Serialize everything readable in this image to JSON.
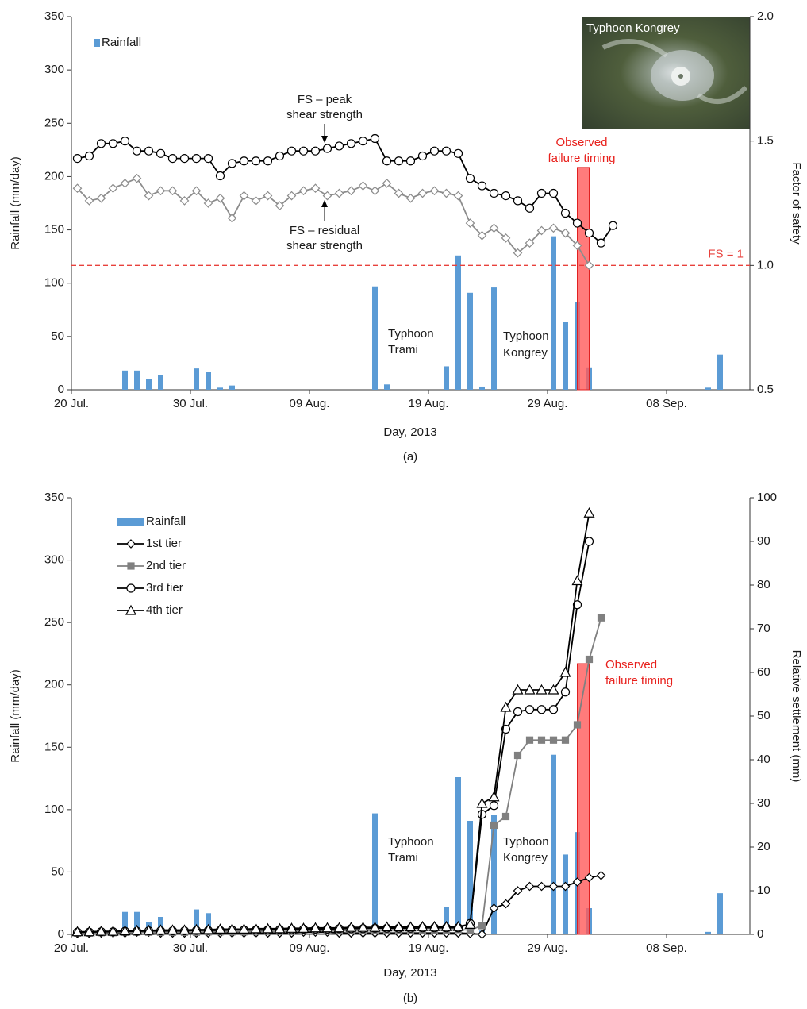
{
  "chart_data": [
    {
      "type": "combo",
      "panel_label": "(a)",
      "x": [
        "2013-07-20",
        "2013-07-21",
        "2013-07-22",
        "2013-07-23",
        "2013-07-24",
        "2013-07-25",
        "2013-07-26",
        "2013-07-27",
        "2013-07-28",
        "2013-07-29",
        "2013-07-30",
        "2013-07-31",
        "2013-08-01",
        "2013-08-02",
        "2013-08-03",
        "2013-08-04",
        "2013-08-05",
        "2013-08-06",
        "2013-08-07",
        "2013-08-08",
        "2013-08-09",
        "2013-08-10",
        "2013-08-11",
        "2013-08-12",
        "2013-08-13",
        "2013-08-14",
        "2013-08-15",
        "2013-08-16",
        "2013-08-17",
        "2013-08-18",
        "2013-08-19",
        "2013-08-20",
        "2013-08-21",
        "2013-08-22",
        "2013-08-23",
        "2013-08-24",
        "2013-08-25",
        "2013-08-26",
        "2013-08-27",
        "2013-08-28",
        "2013-08-29",
        "2013-08-30",
        "2013-08-31",
        "2013-09-01",
        "2013-09-02",
        "2013-09-03"
      ],
      "xlim": [
        "2013-07-20",
        "2013-09-15"
      ],
      "xticks": [
        {
          "value": "2013-07-20",
          "label": "20 Jul."
        },
        {
          "value": "2013-07-30",
          "label": "30 Jul."
        },
        {
          "value": "2013-08-09",
          "label": "09 Aug."
        },
        {
          "value": "2013-08-19",
          "label": "19 Aug."
        },
        {
          "value": "2013-08-29",
          "label": "29 Aug."
        },
        {
          "value": "2013-09-08",
          "label": "08 Sep."
        }
      ],
      "x_label": "Day, 2013",
      "y_label": "Rainfall (mm/day)",
      "y2_label": "Factor of safety",
      "ylim": [
        0,
        350
      ],
      "yticks": [
        0,
        50,
        100,
        150,
        200,
        250,
        300,
        350
      ],
      "y2lim": [
        0.5,
        2
      ],
      "y2ticks": [
        {
          "value": 0.5,
          "label": "0.5"
        },
        {
          "value": 1,
          "label": "1.0"
        },
        {
          "value": 1.5,
          "label": "1.5"
        },
        {
          "value": 2,
          "label": "2.0"
        }
      ],
      "series": [
        {
          "name": "Rainfall",
          "type": "bar",
          "color": "#5b9bd5",
          "x": [
            "2013-07-24",
            "2013-07-25",
            "2013-07-26",
            "2013-07-27",
            "2013-07-30",
            "2013-07-31",
            "2013-08-01",
            "2013-08-02",
            "2013-08-14",
            "2013-08-15",
            "2013-08-20",
            "2013-08-21",
            "2013-08-22",
            "2013-08-23",
            "2013-08-24",
            "2013-08-29",
            "2013-08-30",
            "2013-08-31",
            "2013-09-01",
            "2013-09-11",
            "2013-09-12"
          ],
          "values": [
            18,
            18,
            10,
            14,
            20,
            17,
            2,
            4,
            97,
            5,
            22,
            126,
            91,
            3,
            96,
            144,
            64,
            82,
            21,
            2,
            33
          ]
        },
        {
          "type": "line",
          "axis": "y2",
          "color": "#000000",
          "marker": "circle",
          "values": [
            1.43,
            1.44,
            1.49,
            1.49,
            1.5,
            1.46,
            1.46,
            1.45,
            1.43,
            1.43,
            1.43,
            1.43,
            1.36,
            1.41,
            1.42,
            1.42,
            1.42,
            1.44,
            1.46,
            1.46,
            1.46,
            1.47,
            1.48,
            1.49,
            1.5,
            1.51,
            1.42,
            1.42,
            1.42,
            1.44,
            1.46,
            1.46,
            1.45,
            1.35,
            1.32,
            1.29,
            1.28,
            1.26,
            1.23,
            1.29,
            1.29,
            1.21,
            1.17,
            1.13,
            1.09,
            1.16
          ]
        },
        {
          "type": "line",
          "axis": "y2",
          "color": "#8c8c8c",
          "marker": "diamond",
          "values": [
            1.31,
            1.26,
            1.27,
            1.31,
            1.33,
            1.35,
            1.28,
            1.3,
            1.3,
            1.26,
            1.3,
            1.25,
            1.27,
            1.19,
            1.28,
            1.26,
            1.28,
            1.24,
            1.28,
            1.3,
            1.31,
            1.28,
            1.29,
            1.3,
            1.32,
            1.3,
            1.33,
            1.29,
            1.27,
            1.29,
            1.3,
            1.29,
            1.28,
            1.17,
            1.12,
            1.15,
            1.11,
            1.05,
            1.09,
            1.14,
            1.15,
            1.13,
            1.08,
            1.0,
            null,
            null
          ]
        }
      ],
      "reference_line": {
        "value": 1,
        "label": "FS = 1",
        "axis": "y2",
        "color": "#e8413c"
      },
      "failure": {
        "x": "2013-09-01",
        "label": [
          "Observed",
          "failure timing"
        ],
        "color": "#ff5a5a"
      },
      "annotations": [
        [
          "FS – peak",
          "shear strength"
        ],
        [
          "FS – residual",
          "shear strength"
        ],
        [
          "Typhoon",
          "Trami"
        ],
        [
          "Typhoon",
          "Kongrey"
        ]
      ],
      "inset_label": "Typhoon Kongrey"
    },
    {
      "type": "combo",
      "panel_label": "(b)",
      "x": [
        "2013-07-20",
        "2013-07-21",
        "2013-07-22",
        "2013-07-23",
        "2013-07-24",
        "2013-07-25",
        "2013-07-26",
        "2013-07-27",
        "2013-07-28",
        "2013-07-29",
        "2013-07-30",
        "2013-07-31",
        "2013-08-01",
        "2013-08-02",
        "2013-08-03",
        "2013-08-04",
        "2013-08-05",
        "2013-08-06",
        "2013-08-07",
        "2013-08-08",
        "2013-08-09",
        "2013-08-10",
        "2013-08-11",
        "2013-08-12",
        "2013-08-13",
        "2013-08-14",
        "2013-08-15",
        "2013-08-16",
        "2013-08-17",
        "2013-08-18",
        "2013-08-19",
        "2013-08-20",
        "2013-08-21",
        "2013-08-22",
        "2013-08-23",
        "2013-08-24",
        "2013-08-25",
        "2013-08-26",
        "2013-08-27",
        "2013-08-28",
        "2013-08-29",
        "2013-08-30",
        "2013-08-31",
        "2013-09-01",
        "2013-09-02",
        "2013-09-03"
      ],
      "xlim": [
        "2013-07-20",
        "2013-09-15"
      ],
      "xticks": [
        {
          "value": "2013-07-20",
          "label": "20 Jul."
        },
        {
          "value": "2013-07-30",
          "label": "30 Jul."
        },
        {
          "value": "2013-08-09",
          "label": "09 Aug."
        },
        {
          "value": "2013-08-19",
          "label": "19 Aug."
        },
        {
          "value": "2013-08-29",
          "label": "29 Aug."
        },
        {
          "value": "2013-09-08",
          "label": "08 Sep."
        }
      ],
      "x_label": "Day, 2013",
      "y_label": "Rainfall (mm/day)",
      "y2_label": "Relative settlement (mm)",
      "ylim": [
        0,
        350
      ],
      "yticks": [
        0,
        50,
        100,
        150,
        200,
        250,
        300,
        350
      ],
      "y2lim": [
        0,
        100
      ],
      "y2ticks": [
        0,
        10,
        20,
        30,
        40,
        50,
        60,
        70,
        80,
        90,
        100
      ],
      "series": [
        {
          "name": "Rainfall",
          "type": "bar",
          "color": "#5b9bd5",
          "x": [
            "2013-07-24",
            "2013-07-25",
            "2013-07-26",
            "2013-07-27",
            "2013-07-30",
            "2013-07-31",
            "2013-08-01",
            "2013-08-02",
            "2013-08-14",
            "2013-08-15",
            "2013-08-20",
            "2013-08-21",
            "2013-08-22",
            "2013-08-23",
            "2013-08-24",
            "2013-08-29",
            "2013-08-30",
            "2013-08-31",
            "2013-09-01",
            "2013-09-11",
            "2013-09-12"
          ],
          "values": [
            18,
            18,
            10,
            14,
            20,
            17,
            2,
            4,
            97,
            5,
            22,
            126,
            91,
            3,
            96,
            144,
            64,
            82,
            21,
            2,
            33
          ]
        },
        {
          "name": "1st tier",
          "type": "line",
          "axis": "y2",
          "color": "#000000",
          "marker": "diamond",
          "values": [
            0.2,
            0.2,
            0.3,
            0.3,
            0.3,
            0.5,
            0.5,
            0.3,
            0.3,
            0.3,
            0.3,
            0.3,
            0.3,
            0.3,
            0.3,
            0.3,
            0.3,
            0.3,
            0.3,
            0.5,
            0.5,
            0.5,
            0.3,
            0.3,
            0.3,
            0.3,
            0.3,
            0.3,
            0.3,
            0.3,
            0.3,
            0.3,
            0.3,
            0.2,
            0,
            6,
            7,
            10,
            11,
            11,
            11,
            11,
            12,
            13,
            13.5,
            null
          ]
        },
        {
          "name": "2nd tier",
          "type": "line",
          "axis": "y2",
          "color": "#808080",
          "marker": "square",
          "values": [
            0.3,
            0.3,
            0.4,
            0.4,
            0.5,
            0.5,
            0.5,
            0.5,
            0.5,
            0.5,
            0.5,
            0.6,
            0.6,
            0.6,
            0.6,
            0.7,
            0.7,
            0.7,
            0.7,
            0.8,
            0.8,
            0.8,
            0.8,
            0.9,
            0.9,
            0.9,
            1,
            1,
            1,
            1,
            1,
            1,
            1.1,
            1,
            2,
            25,
            27,
            41,
            44.5,
            44.5,
            44.5,
            44.5,
            48,
            63,
            72.5,
            null
          ]
        },
        {
          "name": "3rd tier",
          "type": "line",
          "axis": "y2",
          "color": "#000000",
          "marker": "circle",
          "values": [
            0.5,
            0.5,
            0.6,
            0.6,
            0.7,
            0.7,
            0.8,
            0.8,
            0.8,
            0.8,
            0.9,
            0.9,
            0.9,
            1,
            1,
            1,
            1,
            1.1,
            1.1,
            1.2,
            1.2,
            1.2,
            1.3,
            1.3,
            1.3,
            1.4,
            1.4,
            1.4,
            1.4,
            1.5,
            1.5,
            1.5,
            1.5,
            2.5,
            27.5,
            29.5,
            47,
            51,
            51.5,
            51.5,
            51.5,
            55.5,
            75.5,
            90,
            null,
            null
          ]
        },
        {
          "name": "4th tier",
          "type": "line",
          "axis": "y2",
          "color": "#000000",
          "marker": "triangle",
          "values": [
            0.6,
            0.6,
            0.7,
            0.7,
            0.8,
            0.9,
            0.9,
            1,
            1,
            1,
            1.1,
            1.1,
            1.2,
            1.2,
            1.2,
            1.3,
            1.3,
            1.3,
            1.4,
            1.4,
            1.5,
            1.5,
            1.5,
            1.6,
            1.6,
            1.6,
            1.7,
            1.7,
            1.7,
            1.8,
            1.8,
            1.8,
            1.8,
            2.3,
            30,
            31.5,
            52,
            56,
            56,
            56,
            56,
            60,
            81,
            96.5,
            null,
            null
          ]
        }
      ],
      "failure": {
        "x": "2013-09-01",
        "label": [
          "Observed",
          "failure timing"
        ],
        "color": "#ff5a5a"
      },
      "annotations": [
        [
          "Typhoon",
          "Trami"
        ],
        [
          "Typhoon",
          "Kongrey"
        ]
      ]
    }
  ]
}
